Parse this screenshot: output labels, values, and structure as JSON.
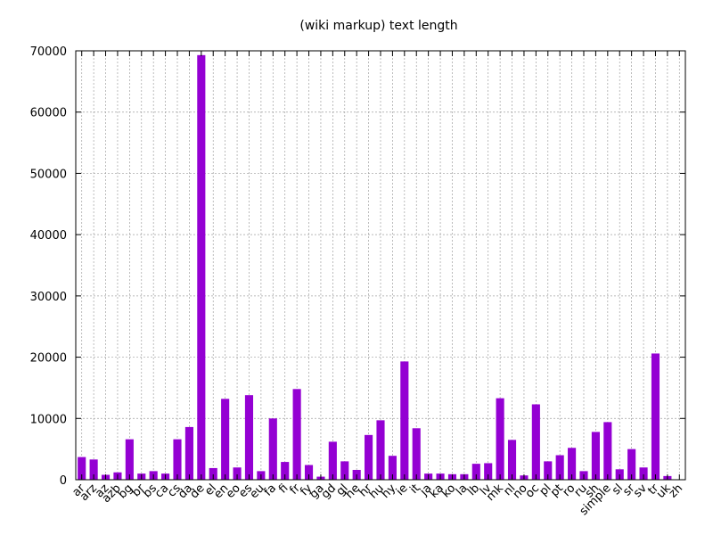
{
  "chart_data": {
    "type": "bar",
    "title": "(wiki markup) text length",
    "xlabel": "",
    "ylabel": "",
    "ylim": [
      0,
      70000
    ],
    "yticks": [
      0,
      10000,
      20000,
      30000,
      40000,
      50000,
      60000,
      70000
    ],
    "grid": true,
    "bar_color": "#9400d3",
    "categories": [
      "ar",
      "arz",
      "az",
      "azb",
      "bg",
      "br",
      "bs",
      "ca",
      "cs",
      "da",
      "de",
      "el",
      "en",
      "eo",
      "es",
      "eu",
      "fa",
      "fi",
      "fr",
      "fy",
      "ga",
      "gd",
      "gl",
      "he",
      "hr",
      "hu",
      "hy",
      "ie",
      "it",
      "ja",
      "ka",
      "ko",
      "la",
      "lb",
      "lv",
      "mk",
      "nl",
      "no",
      "oc",
      "pl",
      "pt",
      "ro",
      "ru",
      "sh",
      "simple",
      "sl",
      "sr",
      "sv",
      "tr",
      "uk",
      "zh"
    ],
    "values": [
      3700,
      3300,
      800,
      1200,
      6600,
      1000,
      1400,
      1000,
      6600,
      8600,
      69300,
      1900,
      13200,
      2000,
      13800,
      1400,
      10000,
      2900,
      14800,
      2400,
      500,
      6200,
      3000,
      1600,
      7300,
      9700,
      3900,
      19300,
      8400,
      1000,
      1000,
      900,
      900,
      2600,
      2700,
      13300,
      6500,
      700,
      12300,
      3000,
      4000,
      5200,
      1400,
      7800,
      9400,
      1700,
      5000,
      2000,
      20600,
      600,
      0
    ]
  }
}
